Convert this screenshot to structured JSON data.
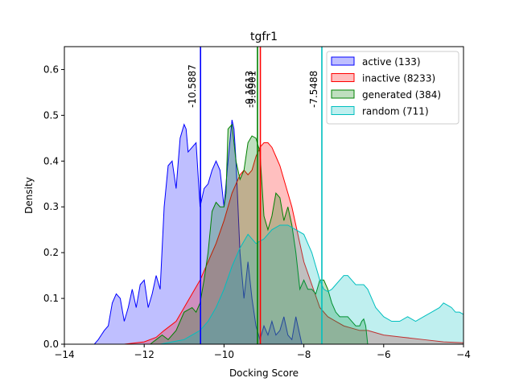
{
  "chart_data": {
    "type": "area",
    "title": "tgfr1",
    "xlabel": "Docking Score",
    "ylabel": "Density",
    "xlim": [
      -14,
      -4
    ],
    "ylim": [
      0,
      0.65
    ],
    "xticks": [
      -14,
      -12,
      -10,
      -8,
      -6,
      -4
    ],
    "xtick_labels": [
      "−14",
      "−12",
      "−10",
      "−8",
      "−6",
      "−4"
    ],
    "yticks": [
      0.0,
      0.1,
      0.2,
      0.3,
      0.4,
      0.5,
      0.6
    ],
    "ytick_labels": [
      "0.0",
      "0.1",
      "0.2",
      "0.3",
      "0.4",
      "0.5",
      "0.6"
    ],
    "legend_position": "upper right",
    "series": [
      {
        "name": "active (133)",
        "line_color": "#0000ff",
        "fill_color": "#0000ff",
        "fill_opacity": 0.25,
        "x": [
          -13.25,
          -13.15,
          -13.0,
          -12.9,
          -12.8,
          -12.7,
          -12.6,
          -12.5,
          -12.4,
          -12.3,
          -12.2,
          -12.1,
          -12.0,
          -11.9,
          -11.8,
          -11.7,
          -11.6,
          -11.5,
          -11.4,
          -11.3,
          -11.2,
          -11.1,
          -11.0,
          -10.95,
          -10.9,
          -10.8,
          -10.7,
          -10.6,
          -10.5,
          -10.4,
          -10.3,
          -10.2,
          -10.1,
          -10.0,
          -9.9,
          -9.8,
          -9.75,
          -9.7,
          -9.6,
          -9.5,
          -9.4,
          -9.3,
          -9.2,
          -9.1,
          -9.0,
          -8.9,
          -8.8,
          -8.7,
          -8.6,
          -8.5,
          -8.4,
          -8.3,
          -8.2,
          -8.1,
          -8.05
        ],
        "y": [
          0.0,
          0.01,
          0.03,
          0.04,
          0.09,
          0.11,
          0.1,
          0.05,
          0.08,
          0.12,
          0.08,
          0.13,
          0.14,
          0.08,
          0.11,
          0.15,
          0.12,
          0.3,
          0.39,
          0.4,
          0.34,
          0.45,
          0.48,
          0.47,
          0.42,
          0.43,
          0.44,
          0.3,
          0.34,
          0.35,
          0.38,
          0.4,
          0.38,
          0.3,
          0.4,
          0.49,
          0.47,
          0.4,
          0.2,
          0.1,
          0.18,
          0.1,
          0.04,
          0.01,
          0.04,
          0.02,
          0.05,
          0.02,
          0.03,
          0.06,
          0.02,
          0.01,
          0.06,
          0.02,
          0.0
        ]
      },
      {
        "name": "inactive (8233)",
        "line_color": "#ff0000",
        "fill_color": "#ff0000",
        "fill_opacity": 0.25,
        "x": [
          -13.6,
          -13.0,
          -12.5,
          -12.0,
          -11.7,
          -11.5,
          -11.2,
          -11.0,
          -10.8,
          -10.6,
          -10.4,
          -10.2,
          -10.0,
          -9.9,
          -9.8,
          -9.7,
          -9.6,
          -9.5,
          -9.4,
          -9.3,
          -9.2,
          -9.1,
          -9.0,
          -8.9,
          -8.8,
          -8.7,
          -8.6,
          -8.5,
          -8.4,
          -8.3,
          -8.2,
          -8.1,
          -8.0,
          -7.8,
          -7.6,
          -7.4,
          -7.2,
          -7.0,
          -6.8,
          -6.6,
          -6.4,
          -6.2,
          -6.0,
          -5.5,
          -5.0,
          -4.5,
          -4.0
        ],
        "y": [
          0.0,
          0.0,
          0.0,
          0.005,
          0.015,
          0.03,
          0.05,
          0.08,
          0.11,
          0.14,
          0.18,
          0.22,
          0.27,
          0.3,
          0.33,
          0.35,
          0.37,
          0.38,
          0.37,
          0.38,
          0.41,
          0.43,
          0.44,
          0.44,
          0.43,
          0.41,
          0.39,
          0.36,
          0.33,
          0.3,
          0.26,
          0.22,
          0.18,
          0.13,
          0.08,
          0.06,
          0.05,
          0.04,
          0.035,
          0.03,
          0.03,
          0.025,
          0.02,
          0.015,
          0.01,
          0.005,
          0.003
        ]
      },
      {
        "name": "generated (384)",
        "line_color": "#008000",
        "fill_color": "#008000",
        "fill_opacity": 0.25,
        "x": [
          -11.85,
          -11.7,
          -11.55,
          -11.4,
          -11.2,
          -11.0,
          -10.8,
          -10.7,
          -10.6,
          -10.5,
          -10.4,
          -10.3,
          -10.2,
          -10.1,
          -10.0,
          -9.95,
          -9.9,
          -9.8,
          -9.7,
          -9.6,
          -9.5,
          -9.4,
          -9.3,
          -9.2,
          -9.1,
          -9.0,
          -8.9,
          -8.8,
          -8.7,
          -8.6,
          -8.5,
          -8.4,
          -8.3,
          -8.2,
          -8.1,
          -8.0,
          -7.9,
          -7.8,
          -7.7,
          -7.6,
          -7.5,
          -7.4,
          -7.3,
          -7.2,
          -7.1,
          -7.0,
          -6.9,
          -6.8,
          -6.7,
          -6.6,
          -6.55,
          -6.5,
          -6.45,
          -6.4
        ],
        "y": [
          0.0,
          0.01,
          0.02,
          0.01,
          0.03,
          0.07,
          0.08,
          0.07,
          0.09,
          0.14,
          0.2,
          0.29,
          0.31,
          0.3,
          0.3,
          0.33,
          0.47,
          0.48,
          0.4,
          0.36,
          0.38,
          0.44,
          0.455,
          0.45,
          0.42,
          0.28,
          0.25,
          0.28,
          0.33,
          0.32,
          0.27,
          0.3,
          0.26,
          0.2,
          0.12,
          0.14,
          0.12,
          0.12,
          0.11,
          0.14,
          0.14,
          0.12,
          0.09,
          0.07,
          0.06,
          0.06,
          0.06,
          0.05,
          0.04,
          0.04,
          0.05,
          0.055,
          0.04,
          0.0
        ]
      },
      {
        "name": "random (711)",
        "line_color": "#00bfbf",
        "fill_color": "#00bfbf",
        "fill_opacity": 0.25,
        "x": [
          -11.6,
          -11.3,
          -11.0,
          -10.8,
          -10.6,
          -10.4,
          -10.2,
          -10.0,
          -9.8,
          -9.6,
          -9.4,
          -9.2,
          -9.0,
          -8.8,
          -8.6,
          -8.4,
          -8.2,
          -8.0,
          -7.9,
          -7.8,
          -7.7,
          -7.6,
          -7.5,
          -7.4,
          -7.3,
          -7.2,
          -7.1,
          -7.0,
          -6.9,
          -6.8,
          -6.7,
          -6.6,
          -6.5,
          -6.4,
          -6.2,
          -6.0,
          -5.8,
          -5.6,
          -5.4,
          -5.2,
          -5.0,
          -4.8,
          -4.6,
          -4.5,
          -4.4,
          -4.3,
          -4.2,
          -4.1,
          -4.0
        ],
        "y": [
          0.0,
          0.005,
          0.01,
          0.02,
          0.03,
          0.05,
          0.08,
          0.12,
          0.17,
          0.21,
          0.24,
          0.22,
          0.23,
          0.25,
          0.26,
          0.26,
          0.25,
          0.24,
          0.22,
          0.2,
          0.17,
          0.14,
          0.12,
          0.115,
          0.12,
          0.13,
          0.14,
          0.15,
          0.15,
          0.14,
          0.13,
          0.13,
          0.13,
          0.12,
          0.08,
          0.06,
          0.05,
          0.05,
          0.06,
          0.05,
          0.06,
          0.07,
          0.08,
          0.09,
          0.085,
          0.08,
          0.07,
          0.07,
          0.065
        ]
      }
    ],
    "vlines": [
      {
        "x": -10.5887,
        "label": "-10.5887",
        "color": "#0000ff"
      },
      {
        "x": -9.1613,
        "label": "-9.1613",
        "color": "#008000"
      },
      {
        "x": -9.0901,
        "label": "-9.0901",
        "color": "#ff0000"
      },
      {
        "x": -7.5488,
        "label": "-7.5488",
        "color": "#00bfbf"
      }
    ]
  }
}
